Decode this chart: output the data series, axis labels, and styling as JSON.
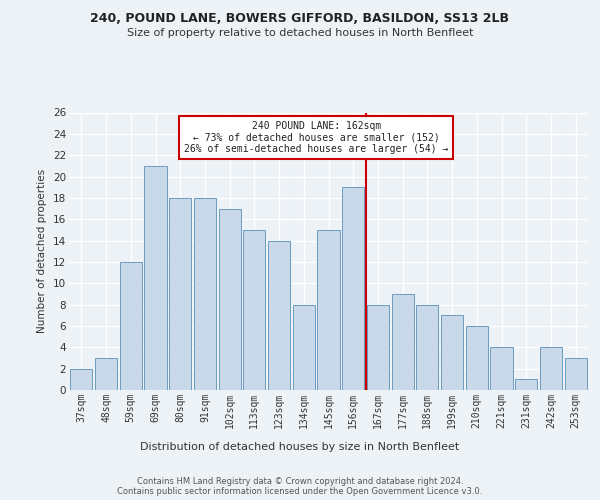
{
  "title": "240, POUND LANE, BOWERS GIFFORD, BASILDON, SS13 2LB",
  "subtitle": "Size of property relative to detached houses in North Benfleet",
  "xlabel": "Distribution of detached houses by size in North Benfleet",
  "ylabel": "Number of detached properties",
  "categories": [
    "37sqm",
    "48sqm",
    "59sqm",
    "69sqm",
    "80sqm",
    "91sqm",
    "102sqm",
    "113sqm",
    "123sqm",
    "134sqm",
    "145sqm",
    "156sqm",
    "167sqm",
    "177sqm",
    "188sqm",
    "199sqm",
    "210sqm",
    "221sqm",
    "231sqm",
    "242sqm",
    "253sqm"
  ],
  "values": [
    2,
    3,
    12,
    21,
    18,
    18,
    17,
    15,
    14,
    8,
    15,
    19,
    8,
    9,
    8,
    7,
    6,
    4,
    1,
    4,
    3
  ],
  "bar_color": "#c9d9ea",
  "bar_edge_color": "#6a9bbf",
  "background_color": "#edf2f7",
  "grid_color": "#ffffff",
  "marker_bin_index": 11,
  "marker_color": "#cc0000",
  "annotation_line1": "240 POUND LANE: 162sqm",
  "annotation_line2": "← 73% of detached houses are smaller (152)",
  "annotation_line3": "26% of semi-detached houses are larger (54) →",
  "annotation_box_color": "#ffffff",
  "annotation_box_edge": "#cc0000",
  "ylim": [
    0,
    26
  ],
  "yticks": [
    0,
    2,
    4,
    6,
    8,
    10,
    12,
    14,
    16,
    18,
    20,
    22,
    24,
    26
  ],
  "footer_line1": "Contains HM Land Registry data © Crown copyright and database right 2024.",
  "footer_line2": "Contains public sector information licensed under the Open Government Licence v3.0."
}
